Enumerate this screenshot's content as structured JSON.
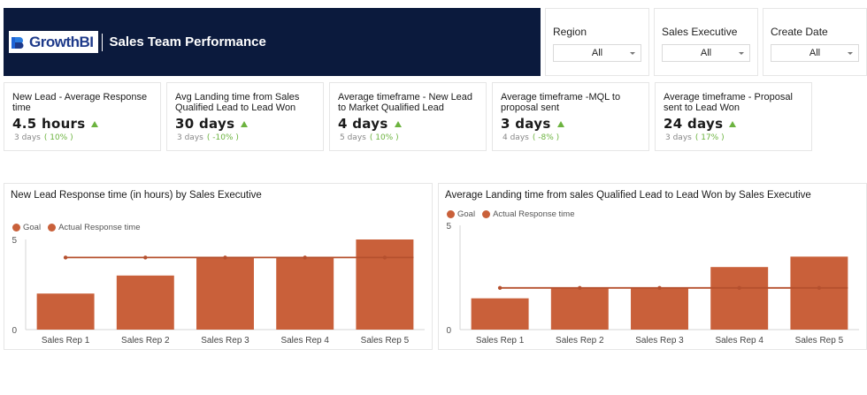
{
  "header": {
    "logo_text": "GrowthBI",
    "title": "Sales Team Performance"
  },
  "filters": [
    {
      "label": "Region",
      "value": "All"
    },
    {
      "label": "Sales Executive",
      "value": "All"
    },
    {
      "label": "Create Date",
      "value": "All"
    }
  ],
  "kpis": [
    {
      "title": "New Lead - Average Response time",
      "value": "4.5 hours",
      "prev": "3 days",
      "delta": "( 10% )"
    },
    {
      "title": "Avg Landing time from Sales Qualified Lead to Lead Won",
      "value": "30 days",
      "prev": "3 days",
      "delta": "( -10% )"
    },
    {
      "title": "Average timeframe - New Lead to Market Qualified Lead",
      "value": "4 days",
      "prev": "5 days",
      "delta": "( 10% )"
    },
    {
      "title": "Average timeframe -MQL to proposal sent",
      "value": "3 days",
      "prev": "4 days",
      "delta": "( -8% )"
    },
    {
      "title": "Average timeframe - Proposal sent to Lead Won",
      "value": "24 days",
      "prev": "3 days",
      "delta": "( 17% )"
    }
  ],
  "colors": {
    "header_bg": "#0b1a3d",
    "bar": "#c9603a",
    "goal_line": "#b5502e",
    "up_arrow": "#6cb33f"
  },
  "legend": {
    "goal": "Goal",
    "actual": "Actual Response time"
  },
  "chart_data": [
    {
      "type": "bar",
      "title": "New Lead Response time (in hours) by Sales Executive",
      "categories": [
        "Sales Rep 1",
        "Sales Rep 2",
        "Sales Rep 3",
        "Sales Rep 4",
        "Sales Rep 5"
      ],
      "series": [
        {
          "name": "Actual Response time",
          "values": [
            2,
            3,
            4,
            4,
            5
          ]
        },
        {
          "name": "Goal",
          "values": [
            4,
            4,
            4,
            4,
            4
          ]
        }
      ],
      "ylim": [
        0,
        5
      ],
      "yticks": [
        "0",
        "5"
      ],
      "legend_position": "top-left"
    },
    {
      "type": "bar",
      "title": "Average Landing time from sales Qualified Lead to Lead Won by Sales Executive",
      "categories": [
        "Sales Rep 1",
        "Sales Rep 2",
        "Sales Rep 3",
        "Sales Rep 4",
        "Sales Rep 5"
      ],
      "series": [
        {
          "name": "Actual Response time",
          "values": [
            1.5,
            2,
            2,
            3,
            3.5
          ]
        },
        {
          "name": "Goal",
          "values": [
            2,
            2,
            2,
            2,
            2
          ]
        }
      ],
      "ylim": [
        0,
        5
      ],
      "yticks": [
        "0",
        "5"
      ],
      "legend_position": "top-left"
    }
  ]
}
